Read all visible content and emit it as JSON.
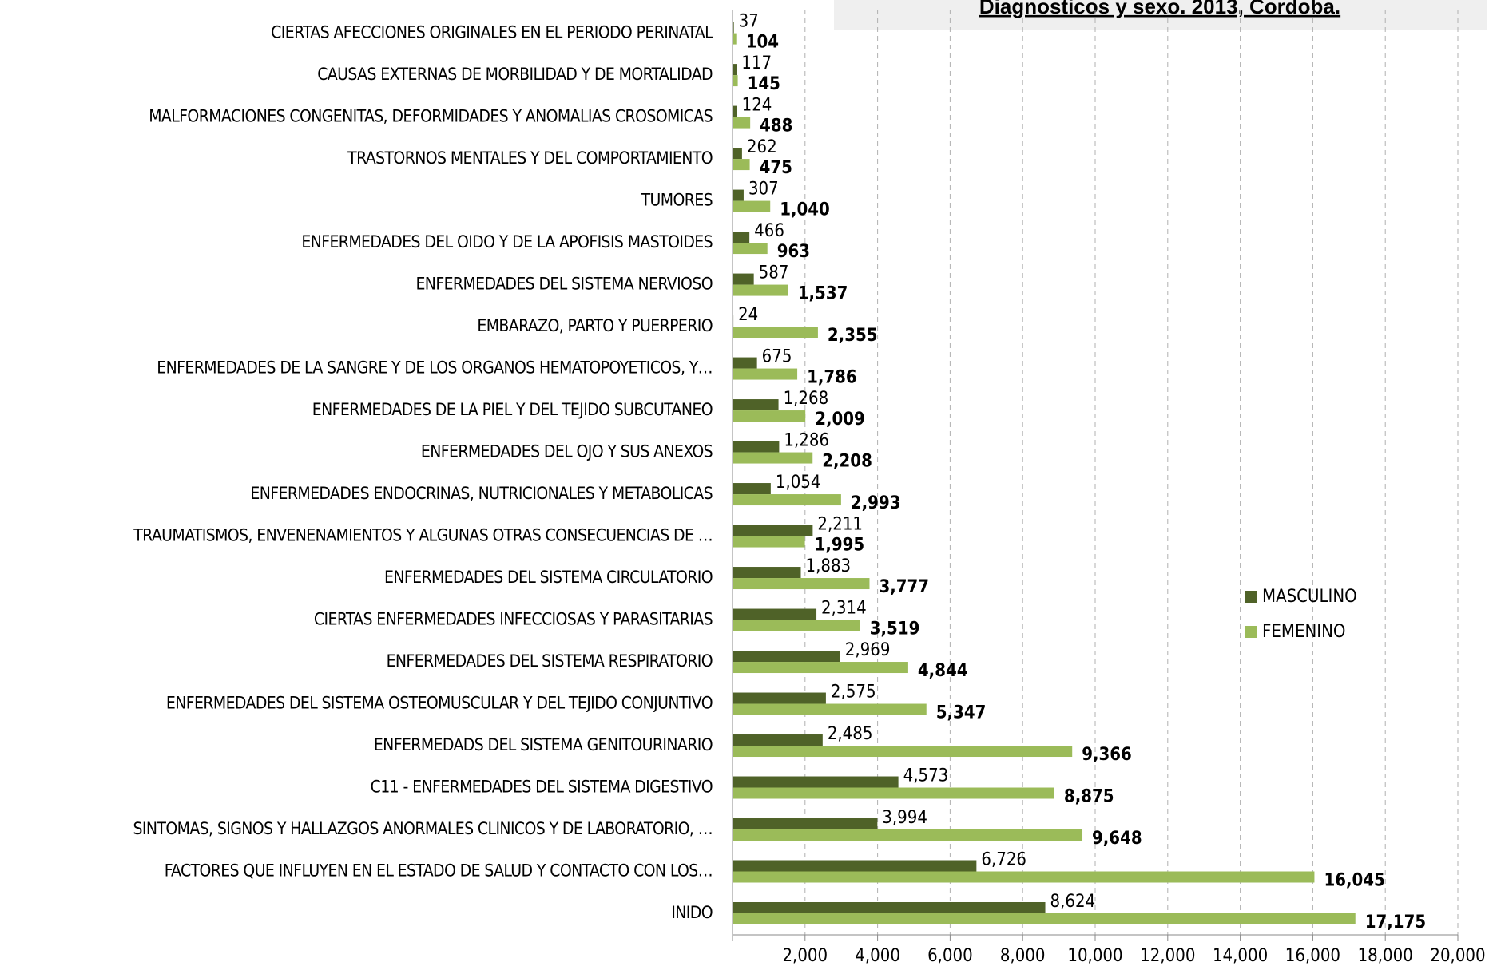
{
  "chart_data": {
    "type": "bar",
    "orientation": "horizontal",
    "title": "Diagnosticos  y sexo.  2013, Cordoba.",
    "categories": [
      "CIERTAS AFECCIONES ORIGINALES EN EL PERIODO PERINATAL",
      "CAUSAS EXTERNAS DE MORBILIDAD Y DE MORTALIDAD",
      "MALFORMACIONES CONGENITAS, DEFORMIDADES Y ANOMALIAS CROSOMICAS",
      "TRASTORNOS MENTALES Y DEL COMPORTAMIENTO",
      "TUMORES",
      "ENFERMEDADES DEL OIDO Y DE LA APOFISIS  MASTOIDES",
      "ENFERMEDADES DEL SISTEMA NERVIOSO",
      "EMBARAZO, PARTO Y PUERPERIO",
      "ENFERMEDADES DE LA SANGRE Y DE LOS ORGANOS HEMATOPOYETICOS, Y…",
      "ENFERMEDADES DE LA PIEL Y DEL TEJIDO SUBCUTANEO",
      "ENFERMEDADES DEL OJO Y SUS ANEXOS",
      "ENFERMEDADES ENDOCRINAS, NUTRICIONALES Y METABOLICAS",
      "TRAUMATISMOS, ENVENENAMIENTOS Y ALGUNAS OTRAS CONSECUENCIAS DE …",
      "ENFERMEDADES DEL SISTEMA CIRCULATORIO",
      "CIERTAS ENFERMEDADES INFECCIOSAS Y PARASITARIAS",
      "ENFERMEDADES DEL SISTEMA RESPIRATORIO",
      "ENFERMEDADES DEL SISTEMA OSTEOMUSCULAR Y DEL TEJIDO CONJUNTIVO",
      "ENFERMEDADS DEL SISTEMA GENITOURINARIO",
      "C11 - ENFERMEDADES DEL SISTEMA DIGESTIVO",
      "SINTOMAS, SIGNOS Y HALLAZGOS ANORMALES CLINICOS Y DE LABORATORIO, …",
      "FACTORES QUE  INFLUYEN EN EL ESTADO DE SALUD Y CONTACTO CON LOS…",
      "INIDO"
    ],
    "series": [
      {
        "name": "MASCULINO",
        "color": "#4f6228",
        "values": [
          37,
          117,
          124,
          262,
          307,
          466,
          587,
          24,
          675,
          1268,
          1286,
          1054,
          2211,
          1883,
          2314,
          2969,
          2575,
          2485,
          4573,
          3994,
          6726,
          8624
        ],
        "value_labels": [
          "37",
          "117",
          "124",
          "262",
          "307",
          "466",
          "587",
          "24",
          "675",
          "1,268",
          "1,286",
          "1,054",
          "2,211",
          "1,883",
          "2,314",
          "2,969",
          "2,575",
          "2,485",
          "4,573",
          "3,994",
          "6,726",
          "8,624"
        ]
      },
      {
        "name": "FEMENINO",
        "color": "#9bbb59",
        "values": [
          104,
          145,
          488,
          475,
          1040,
          963,
          1537,
          2355,
          1786,
          2009,
          2208,
          2993,
          1995,
          3777,
          3519,
          4844,
          5347,
          9366,
          8875,
          9648,
          16045,
          17175
        ],
        "value_labels": [
          "104",
          "145",
          "488",
          "475",
          "1,040",
          "963",
          "1,537",
          "2,355",
          "1,786",
          "2,009",
          "2,208",
          "2,993",
          "1,995",
          "3,777",
          "3,519",
          "4,844",
          "5,347",
          "9,366",
          "8,875",
          "9,648",
          "16,045",
          "17,175"
        ]
      }
    ],
    "xlim": [
      0,
      20000
    ],
    "xticks": [
      {
        "value": 2000,
        "label": "2,000"
      },
      {
        "value": 4000,
        "label": "4,000"
      },
      {
        "value": 6000,
        "label": "6,000"
      },
      {
        "value": 8000,
        "label": "8,000"
      },
      {
        "value": 10000,
        "label": "10,000"
      },
      {
        "value": 12000,
        "label": "12,000"
      },
      {
        "value": 14000,
        "label": "14,000"
      },
      {
        "value": 16000,
        "label": "16,000"
      },
      {
        "value": 18000,
        "label": "18,000"
      },
      {
        "value": 20000,
        "label": "20,000"
      }
    ],
    "grid": true,
    "legend": "right"
  }
}
